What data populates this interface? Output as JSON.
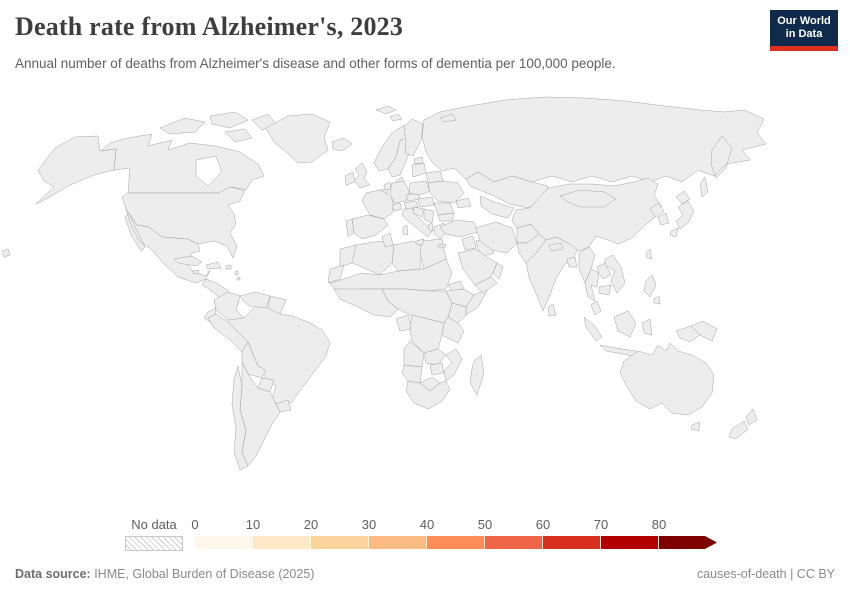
{
  "header": {
    "title": "Death rate from Alzheimer's, 2023",
    "subtitle": "Annual number of deaths from Alzheimer's disease and other forms of dementia per 100,000 people.",
    "logo": {
      "line1": "Our World",
      "line2": "in Data",
      "bg_color": "#102a4c",
      "accent_color": "#dc2f1f"
    }
  },
  "footer": {
    "source_label": "Data source:",
    "source_text": " IHME, Global Burden of Disease (2025)",
    "right_text": "causes-of-death | CC BY"
  },
  "chart_data": {
    "type": "choropleth",
    "title": "Death rate from Alzheimer's, 2023",
    "unit": "deaths per 100,000 people",
    "year": "2023",
    "legend": {
      "no_data_label": "No data",
      "tick_labels": [
        "0",
        "10",
        "20",
        "30",
        "40",
        "50",
        "60",
        "70",
        "80"
      ],
      "open_ended": true,
      "bins": [
        {
          "range": "0–10",
          "color": "#fff7ec"
        },
        {
          "range": "10–20",
          "color": "#fee8c8"
        },
        {
          "range": "20–30",
          "color": "#fdd49e"
        },
        {
          "range": "30–40",
          "color": "#fdbb84"
        },
        {
          "range": "40–50",
          "color": "#fc8d59"
        },
        {
          "range": "50–60",
          "color": "#ef6548"
        },
        {
          "range": "60–70",
          "color": "#d7301f"
        },
        {
          "range": "70–80",
          "color": "#b30000"
        },
        {
          "range": "80+",
          "color": "#7f0000"
        }
      ]
    },
    "regions": [
      {
        "name": "United States",
        "bin": 6
      },
      {
        "name": "Canada",
        "bin": 5
      },
      {
        "name": "Greenland",
        "bin": 1
      },
      {
        "name": "Mexico",
        "bin": 1
      },
      {
        "name": "Guatemala",
        "bin": 0
      },
      {
        "name": "Honduras",
        "bin": 0
      },
      {
        "name": "Nicaragua",
        "bin": 0
      },
      {
        "name": "Panama",
        "bin": 2
      },
      {
        "name": "Cuba",
        "bin": 5
      },
      {
        "name": "Jamaica",
        "bin": 1
      },
      {
        "name": "Haiti",
        "bin": 1
      },
      {
        "name": "Dominican Republic",
        "bin": 1
      },
      {
        "name": "Puerto Rico",
        "bin": 6
      },
      {
        "name": "Trinidad and Tobago",
        "bin": 5
      },
      {
        "name": "Colombia",
        "bin": 2
      },
      {
        "name": "Venezuela",
        "bin": 1
      },
      {
        "name": "Guyana",
        "bin": 0
      },
      {
        "name": "Ecuador",
        "bin": 2
      },
      {
        "name": "Peru",
        "bin": 1
      },
      {
        "name": "Bolivia",
        "bin": 0
      },
      {
        "name": "Brazil",
        "bin": 3
      },
      {
        "name": "Paraguay",
        "bin": 1
      },
      {
        "name": "Uruguay",
        "bin": 5
      },
      {
        "name": "Argentina",
        "bin": 2
      },
      {
        "name": "Chile",
        "bin": 3
      },
      {
        "name": "Iceland",
        "bin": 6
      },
      {
        "name": "Ireland",
        "bin": 5
      },
      {
        "name": "United Kingdom",
        "bin": 6
      },
      {
        "name": "Portugal",
        "bin": 7
      },
      {
        "name": "Spain",
        "bin": 7
      },
      {
        "name": "France",
        "bin": 6
      },
      {
        "name": "Belgium",
        "bin": 7
      },
      {
        "name": "Netherlands",
        "bin": 6
      },
      {
        "name": "Germany",
        "bin": 8
      },
      {
        "name": "Switzerland",
        "bin": 7
      },
      {
        "name": "Austria",
        "bin": 7
      },
      {
        "name": "Italy",
        "bin": 8
      },
      {
        "name": "Denmark",
        "bin": 7
      },
      {
        "name": "Norway",
        "bin": 7
      },
      {
        "name": "Sweden",
        "bin": 6
      },
      {
        "name": "Finland",
        "bin": 8
      },
      {
        "name": "Estonia",
        "bin": 6
      },
      {
        "name": "Latvia",
        "bin": 5
      },
      {
        "name": "Lithuania",
        "bin": 5
      },
      {
        "name": "Poland",
        "bin": 4
      },
      {
        "name": "Czechia",
        "bin": 5
      },
      {
        "name": "Slovakia",
        "bin": 4
      },
      {
        "name": "Hungary",
        "bin": 4
      },
      {
        "name": "Croatia",
        "bin": 6
      },
      {
        "name": "Serbia",
        "bin": 5
      },
      {
        "name": "Albania",
        "bin": 7
      },
      {
        "name": "Greece",
        "bin": 7
      },
      {
        "name": "Romania",
        "bin": 4
      },
      {
        "name": "Bulgaria",
        "bin": 5
      },
      {
        "name": "Moldova",
        "bin": 3
      },
      {
        "name": "Ukraine",
        "bin": 3
      },
      {
        "name": "Belarus",
        "bin": 3
      },
      {
        "name": "Russia",
        "bin": 3
      },
      {
        "name": "Turkey",
        "bin": 2
      },
      {
        "name": "Georgia",
        "bin": 2
      },
      {
        "name": "Kazakhstan",
        "bin": 0
      },
      {
        "name": "Uzbekistan",
        "bin": 1
      },
      {
        "name": "Turkmenistan",
        "bin": 1
      },
      {
        "name": "Afghanistan",
        "bin": 0
      },
      {
        "name": "Pakistan",
        "bin": 0
      },
      {
        "name": "India",
        "bin": 0
      },
      {
        "name": "Nepal",
        "bin": 0
      },
      {
        "name": "Bangladesh",
        "bin": 2
      },
      {
        "name": "Sri Lanka",
        "bin": 2
      },
      {
        "name": "Iran",
        "bin": 1
      },
      {
        "name": "Iraq",
        "bin": 0
      },
      {
        "name": "Syria",
        "bin": 1
      },
      {
        "name": "Saudi Arabia",
        "bin": 0
      },
      {
        "name": "Yemen",
        "bin": 1
      },
      {
        "name": "Oman",
        "bin": 1
      },
      {
        "name": "China",
        "bin": 4
      },
      {
        "name": "Mongolia",
        "bin": 0
      },
      {
        "name": "North Korea",
        "bin": 1
      },
      {
        "name": "South Korea",
        "bin": 6
      },
      {
        "name": "Japan",
        "bin": 8
      },
      {
        "name": "Taiwan",
        "bin": 6
      },
      {
        "name": "Myanmar",
        "bin": 2
      },
      {
        "name": "Thailand",
        "bin": 4
      },
      {
        "name": "Laos",
        "bin": 2
      },
      {
        "name": "Vietnam",
        "bin": 5
      },
      {
        "name": "Cambodia",
        "bin": 3
      },
      {
        "name": "Malaysia",
        "bin": 1
      },
      {
        "name": "Indonesia",
        "bin": 1
      },
      {
        "name": "Papua New Guinea",
        "bin": 1
      },
      {
        "name": "Philippines",
        "bin": 1
      },
      {
        "name": "Australia",
        "bin": 5
      },
      {
        "name": "New Zealand",
        "bin": 5
      },
      {
        "name": "Morocco",
        "bin": 0
      },
      {
        "name": "Western Sahara",
        "bin": null
      },
      {
        "name": "Algeria",
        "bin": 1
      },
      {
        "name": "Tunisia",
        "bin": 3
      },
      {
        "name": "Libya",
        "bin": 2
      },
      {
        "name": "Egypt",
        "bin": 1
      },
      {
        "name": "Sudan",
        "bin": 0
      },
      {
        "name": "Mali",
        "bin": 0
      },
      {
        "name": "Mauritania",
        "bin": 0
      },
      {
        "name": "Niger",
        "bin": 0
      },
      {
        "name": "Chad",
        "bin": 0
      },
      {
        "name": "Nigeria",
        "bin": 0
      },
      {
        "name": "Senegal",
        "bin": 0
      },
      {
        "name": "Ghana",
        "bin": 0
      },
      {
        "name": "Cameroon",
        "bin": 0
      },
      {
        "name": "Eritrea",
        "bin": 2
      },
      {
        "name": "Ethiopia",
        "bin": 0
      },
      {
        "name": "Somalia",
        "bin": 0
      },
      {
        "name": "Kenya",
        "bin": 0
      },
      {
        "name": "Uganda",
        "bin": 0
      },
      {
        "name": "Tanzania",
        "bin": 1
      },
      {
        "name": "DR Congo",
        "bin": 0
      },
      {
        "name": "Gabon",
        "bin": 2
      },
      {
        "name": "Angola",
        "bin": 0
      },
      {
        "name": "Zambia",
        "bin": 0
      },
      {
        "name": "Zimbabwe",
        "bin": 1
      },
      {
        "name": "Mozambique",
        "bin": 0
      },
      {
        "name": "Namibia",
        "bin": 0
      },
      {
        "name": "Botswana",
        "bin": 1
      },
      {
        "name": "South Africa",
        "bin": 1
      },
      {
        "name": "Madagascar",
        "bin": 0
      }
    ]
  }
}
